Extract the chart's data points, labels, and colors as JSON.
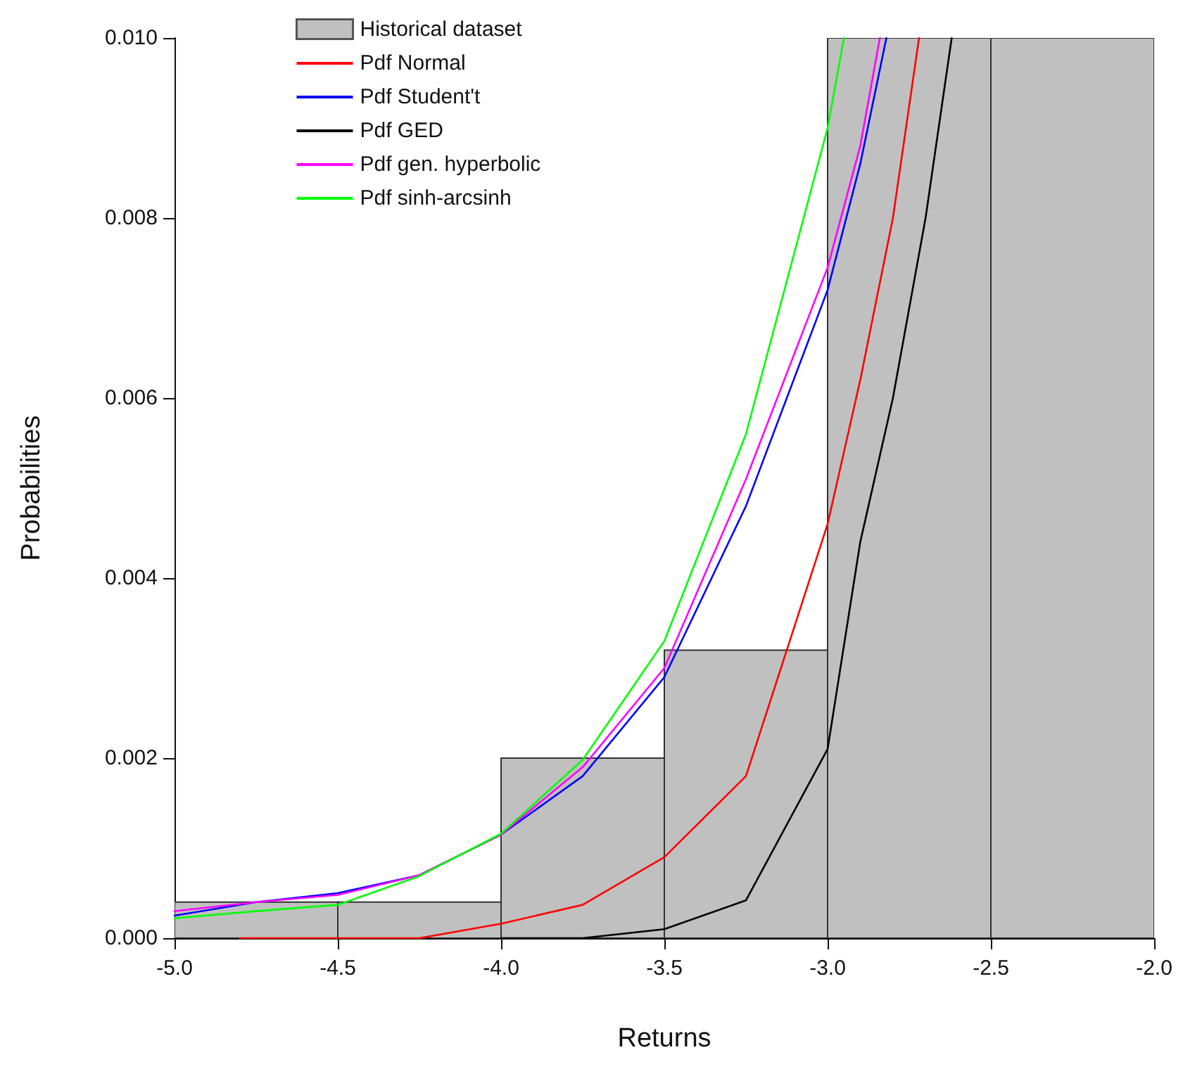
{
  "chart_data": {
    "type": "histogram",
    "xlabel": "Returns",
    "ylabel": "Probabilities",
    "xlim": [
      -5,
      -2
    ],
    "ylim": [
      0,
      0.01
    ],
    "xticks": [
      {
        "value": -5,
        "label": "-5.0"
      },
      {
        "value": -4.5,
        "label": "-4.5"
      },
      {
        "value": -4,
        "label": "-4.0"
      },
      {
        "value": -3.5,
        "label": "-3.5"
      },
      {
        "value": -3,
        "label": "-3.0"
      },
      {
        "value": -2.5,
        "label": "-2.5"
      },
      {
        "value": -2,
        "label": "-2.0"
      }
    ],
    "yticks": [
      {
        "value": 0,
        "label": "0.000"
      },
      {
        "value": 0.002,
        "label": "0.002"
      },
      {
        "value": 0.004,
        "label": "0.004"
      },
      {
        "value": 0.006,
        "label": "0.006"
      },
      {
        "value": 0.008,
        "label": "0.008"
      },
      {
        "value": 0.01,
        "label": "0.010"
      }
    ],
    "grid": false,
    "legend": "top left",
    "marker": "none",
    "line_style": "solid",
    "series": [
      {
        "type": "histogram",
        "name": "Historical dataset",
        "color": "#c0c0c0",
        "bins": [
          -5,
          -4.5,
          -4,
          -3.5,
          -3,
          -2.5,
          -2
        ],
        "values": [
          0.0004,
          0.0004,
          0.002,
          0.0032,
          0.01,
          0.01
        ]
      },
      {
        "type": "line",
        "name": "Pdf Normal",
        "color": "#ff0000",
        "x": [
          -4.8,
          -4.5,
          -4.25,
          -4,
          -3.75,
          -3.5,
          -3.25,
          -3,
          -2.9,
          -2.8,
          -2.72
        ],
        "values": [
          0,
          0,
          0,
          0.00016,
          0.00037,
          0.0009,
          0.0018,
          0.0046,
          0.0062,
          0.008,
          0.01
        ]
      },
      {
        "type": "line",
        "name": "Pdf Student't",
        "color": "#0000ff",
        "x": [
          -5,
          -4.75,
          -4.5,
          -4.25,
          -4,
          -3.75,
          -3.5,
          -3.25,
          -3,
          -2.9,
          -2.82
        ],
        "values": [
          0.00025,
          0.0004,
          0.0005,
          0.0007,
          0.00115,
          0.0018,
          0.0029,
          0.0048,
          0.0072,
          0.0086,
          0.01
        ]
      },
      {
        "type": "line",
        "name": "Pdf GED",
        "color": "#000000",
        "x": [
          -4,
          -3.75,
          -3.5,
          -3.25,
          -3,
          -2.9,
          -2.8,
          -2.7,
          -2.62
        ],
        "values": [
          0,
          0,
          0.0001,
          0.00042,
          0.0021,
          0.0044,
          0.006,
          0.008,
          0.01
        ]
      },
      {
        "type": "line",
        "name": "Pdf gen. hyperbolic",
        "color": "#ff00ff",
        "x": [
          -5,
          -4.75,
          -4.5,
          -4.25,
          -4,
          -3.75,
          -3.5,
          -3.25,
          -3,
          -2.9,
          -2.84
        ],
        "values": [
          0.0003,
          0.0004,
          0.00048,
          0.0007,
          0.00115,
          0.0019,
          0.003,
          0.0051,
          0.00745,
          0.0088,
          0.01
        ]
      },
      {
        "type": "line",
        "name": "Pdf sinh-arcsinh",
        "color": "#00ff00",
        "x": [
          -5,
          -4.75,
          -4.5,
          -4.25,
          -4,
          -3.75,
          -3.5,
          -3.25,
          -3,
          -2.95
        ],
        "values": [
          0.00022,
          0.0003,
          0.00037,
          0.00069,
          0.00116,
          0.00198,
          0.0033,
          0.0056,
          0.009,
          0.01
        ]
      }
    ]
  }
}
